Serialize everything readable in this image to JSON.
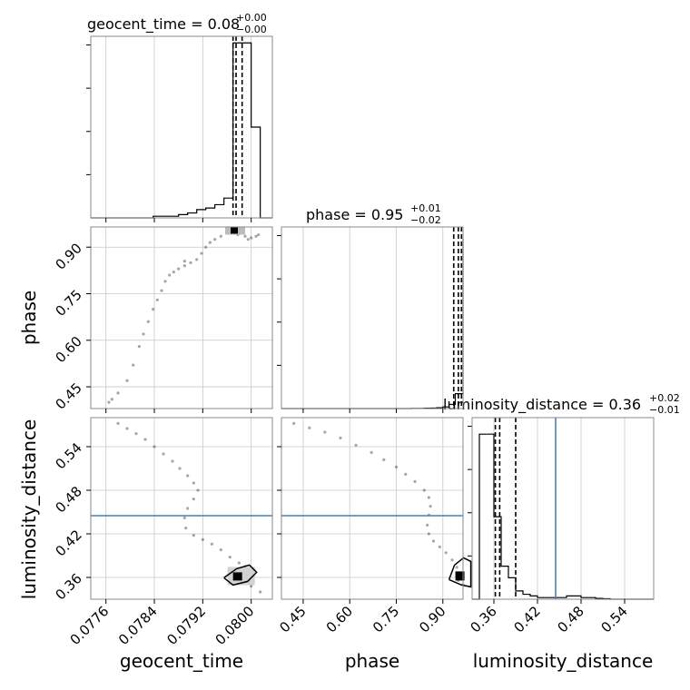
{
  "chart_data": {
    "type": "corner",
    "truth_color": "#4682b4",
    "parameters": [
      "geocent_time",
      "phase",
      "luminosity_distance"
    ],
    "panels": {
      "geocent_time": {
        "title_main": "geocent_time = 0.08",
        "title_sup": "+0.00",
        "title_sub": "−0.00",
        "xlim": [
          0.07735,
          0.08035
        ],
        "ticks": [
          0.0776,
          0.0784,
          0.0792,
          0.08
        ],
        "tick_labels": [
          "0.0776",
          "0.0784",
          "0.0792",
          "0.0800"
        ],
        "xlabel": "geocent_time",
        "hist_edges": [
          0.07735,
          0.07755,
          0.07775,
          0.0779,
          0.07805,
          0.0782,
          0.07838,
          0.0785,
          0.07865,
          0.0788,
          0.07895,
          0.0791,
          0.07925,
          0.0794,
          0.07955,
          0.0797,
          0.07985,
          0.08,
          0.08015,
          0.08035
        ],
        "hist_counts": [
          0,
          0,
          0,
          0,
          0,
          0,
          0.01,
          0.01,
          0.01,
          0.02,
          0.03,
          0.05,
          0.06,
          0.08,
          0.12,
          1.06,
          1.06,
          0.55,
          0
        ],
        "hist_ymax": 1.1,
        "quantiles": [
          0.0797,
          0.07975,
          0.07985
        ]
      },
      "phase": {
        "title_main": "phase = 0.95",
        "title_sup": "+0.01",
        "title_sub": "−0.02",
        "xlim": [
          0.38,
          0.965
        ],
        "ticks": [
          0.45,
          0.6,
          0.75,
          0.9
        ],
        "tick_labels": [
          "0.45",
          "0.60",
          "0.75",
          "0.90"
        ],
        "xlabel": "phase",
        "ylim": [
          0.38,
          0.965
        ],
        "yticks": [
          0.45,
          0.6,
          0.75,
          0.9
        ],
        "ylabel": "phase",
        "hist_edges": [
          0.38,
          0.4,
          0.42,
          0.44,
          0.46,
          0.48,
          0.5,
          0.52,
          0.54,
          0.56,
          0.58,
          0.6,
          0.62,
          0.64,
          0.66,
          0.68,
          0.7,
          0.72,
          0.74,
          0.76,
          0.78,
          0.8,
          0.82,
          0.84,
          0.86,
          0.88,
          0.9,
          0.92,
          0.94,
          0.965
        ],
        "hist_counts": [
          0,
          0,
          0,
          0,
          0,
          0,
          0,
          0,
          0,
          0,
          0,
          0,
          0,
          0,
          0,
          0,
          0,
          0,
          0,
          0,
          0,
          0.001,
          0.001,
          0.002,
          0.003,
          0.005,
          0.01,
          0.025,
          0.09,
          1.03
        ],
        "hist_ymax": 1.1,
        "quantiles": [
          0.935,
          0.95,
          0.96
        ]
      },
      "luminosity_distance": {
        "title_main": "luminosity_distance = 0.36",
        "title_sup": "+0.02",
        "title_sub": "−0.01",
        "xlim": [
          0.33,
          0.58
        ],
        "ticks": [
          0.36,
          0.42,
          0.48,
          0.54
        ],
        "tick_labels": [
          "0.36",
          "0.42",
          "0.48",
          "0.54"
        ],
        "xlabel": "luminosity_distance",
        "ylim": [
          0.33,
          0.58
        ],
        "yticks": [
          0.36,
          0.42,
          0.48,
          0.54
        ],
        "ylabel": "luminosity_distance",
        "hist_edges": [
          0.33,
          0.34,
          0.36,
          0.37,
          0.38,
          0.39,
          0.4,
          0.41,
          0.42,
          0.43,
          0.44,
          0.45,
          0.46,
          0.47,
          0.48,
          0.49,
          0.5,
          0.51,
          0.52,
          0.58
        ],
        "hist_counts": [
          0,
          1.0,
          0.5,
          0.2,
          0.13,
          0.05,
          0.03,
          0.02,
          0.01,
          0.01,
          0.01,
          0.01,
          0.02,
          0.02,
          0.01,
          0.01,
          0.005,
          0.003,
          0
        ],
        "hist_ymax": 1.1,
        "quantiles": [
          0.362,
          0.368,
          0.39
        ],
        "truth": 0.445
      }
    },
    "scatter": {
      "phase_vs_geocent_time": [
        [
          0.07765,
          0.4
        ],
        [
          0.0777,
          0.41
        ],
        [
          0.0778,
          0.43
        ],
        [
          0.07795,
          0.47
        ],
        [
          0.07805,
          0.52
        ],
        [
          0.07815,
          0.58
        ],
        [
          0.07822,
          0.62
        ],
        [
          0.0783,
          0.66
        ],
        [
          0.07838,
          0.7
        ],
        [
          0.07845,
          0.73
        ],
        [
          0.07852,
          0.76
        ],
        [
          0.07858,
          0.79
        ],
        [
          0.07865,
          0.81
        ],
        [
          0.07872,
          0.82
        ],
        [
          0.0788,
          0.83
        ],
        [
          0.0789,
          0.84
        ],
        [
          0.079,
          0.85
        ],
        [
          0.0789,
          0.855
        ],
        [
          0.0791,
          0.86
        ],
        [
          0.07918,
          0.88
        ],
        [
          0.07925,
          0.9
        ],
        [
          0.07932,
          0.915
        ],
        [
          0.0794,
          0.925
        ],
        [
          0.0795,
          0.935
        ],
        [
          0.0796,
          0.945
        ],
        [
          0.07968,
          0.95
        ],
        [
          0.07975,
          0.95
        ],
        [
          0.07982,
          0.945
        ],
        [
          0.0799,
          0.935
        ],
        [
          0.07995,
          0.925
        ],
        [
          0.08,
          0.93
        ],
        [
          0.08008,
          0.935
        ],
        [
          0.08012,
          0.94
        ],
        [
          0.07978,
          0.94
        ],
        [
          0.07972,
          0.955
        ]
      ],
      "luminosity_distance_vs_geocent_time": [
        [
          0.0778,
          0.572
        ],
        [
          0.07795,
          0.565
        ],
        [
          0.0781,
          0.558
        ],
        [
          0.07825,
          0.55
        ],
        [
          0.0784,
          0.54
        ],
        [
          0.07855,
          0.53
        ],
        [
          0.0787,
          0.52
        ],
        [
          0.07882,
          0.51
        ],
        [
          0.07895,
          0.5
        ],
        [
          0.07905,
          0.49
        ],
        [
          0.07912,
          0.48
        ],
        [
          0.07905,
          0.468
        ],
        [
          0.07895,
          0.455
        ],
        [
          0.0789,
          0.442
        ],
        [
          0.07892,
          0.428
        ],
        [
          0.07905,
          0.418
        ],
        [
          0.0792,
          0.412
        ],
        [
          0.07935,
          0.406
        ],
        [
          0.0795,
          0.398
        ],
        [
          0.07965,
          0.388
        ],
        [
          0.0798,
          0.38
        ],
        [
          0.07995,
          0.372
        ],
        [
          0.07985,
          0.365
        ],
        [
          0.07975,
          0.36
        ],
        [
          0.07985,
          0.352
        ],
        [
          0.08,
          0.348
        ],
        [
          0.08015,
          0.34
        ],
        [
          0.08005,
          0.37
        ],
        [
          0.0799,
          0.375
        ]
      ],
      "luminosity_distance_vs_phase": [
        [
          0.42,
          0.572
        ],
        [
          0.47,
          0.566
        ],
        [
          0.52,
          0.56
        ],
        [
          0.57,
          0.552
        ],
        [
          0.62,
          0.542
        ],
        [
          0.67,
          0.532
        ],
        [
          0.71,
          0.522
        ],
        [
          0.75,
          0.512
        ],
        [
          0.78,
          0.502
        ],
        [
          0.81,
          0.492
        ],
        [
          0.84,
          0.48
        ],
        [
          0.855,
          0.47
        ],
        [
          0.86,
          0.458
        ],
        [
          0.855,
          0.446
        ],
        [
          0.85,
          0.432
        ],
        [
          0.855,
          0.42
        ],
        [
          0.87,
          0.41
        ],
        [
          0.89,
          0.402
        ],
        [
          0.91,
          0.394
        ],
        [
          0.93,
          0.384
        ],
        [
          0.945,
          0.374
        ],
        [
          0.955,
          0.366
        ],
        [
          0.96,
          0.36
        ],
        [
          0.95,
          0.356
        ],
        [
          0.965,
          0.35
        ]
      ]
    }
  }
}
